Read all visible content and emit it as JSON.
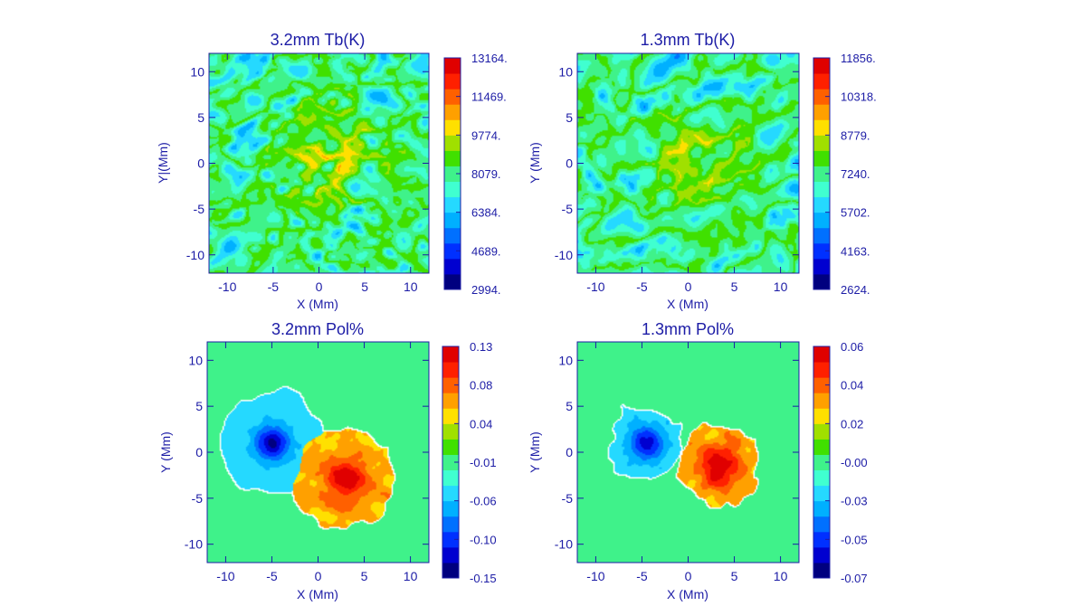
{
  "colors": {
    "axis": "#1c1ca6",
    "text": "#1c1ca6",
    "colormap": [
      "#00007f",
      "#0000d0",
      "#0030ff",
      "#0070ff",
      "#00b0ff",
      "#25d9ff",
      "#40ffd0",
      "#3ff28a",
      "#40e000",
      "#a0e000",
      "#ffe000",
      "#ffa000",
      "#ff6000",
      "#ff2000",
      "#e00000"
    ]
  },
  "chart_data": [
    {
      "type": "heatmap",
      "title": "3.2mm Tb(K)",
      "xlabel": "X (Mm)",
      "ylabel": "Y|(Mm)",
      "xlim": [
        -12,
        12
      ],
      "ylim": [
        -12,
        12
      ],
      "xticks": [
        "-10",
        "-5",
        "0",
        "5",
        "10"
      ],
      "yticks": [
        "-10",
        "-5",
        "0",
        "5",
        "10"
      ],
      "colorbar": {
        "min": 2994,
        "max": 13164,
        "labels": [
          "2994.",
          "4689.",
          "6384.",
          "8079.",
          "9774.",
          "11469.",
          "13164."
        ]
      },
      "field": "brightness",
      "seed": 11,
      "level": 0.5
    },
    {
      "type": "heatmap",
      "title": "1.3mm Tb(K)",
      "xlabel": "X (Mm)",
      "ylabel": "Y (Mm)",
      "xlim": [
        -12,
        12
      ],
      "ylim": [
        -12,
        12
      ],
      "xticks": [
        "-10",
        "-5",
        "0",
        "5",
        "10"
      ],
      "yticks": [
        "-10",
        "-5",
        "0",
        "5",
        "10"
      ],
      "colorbar": {
        "min": 2624,
        "max": 11856,
        "labels": [
          "2624.",
          "4163.",
          "5702.",
          "7240.",
          "8779.",
          "10318.",
          "11856."
        ]
      },
      "field": "brightness",
      "seed": 29,
      "level": 0.4
    },
    {
      "type": "heatmap",
      "title": "3.2mm Pol%",
      "xlabel": "X (Mm)",
      "ylabel": "Y (Mm)",
      "xlim": [
        -12,
        12
      ],
      "ylim": [
        -12,
        12
      ],
      "xticks": [
        "-10",
        "-5",
        "0",
        "5",
        "10"
      ],
      "yticks": [
        "-10",
        "-5",
        "0",
        "5",
        "10"
      ],
      "colorbar": {
        "min": -0.15,
        "max": 0.13,
        "labels": [
          "-0.15",
          "-0.10",
          "-0.06",
          "-0.01",
          "0.04",
          "0.08",
          "0.13"
        ]
      },
      "field": "polarization",
      "seed": 47,
      "neg_center": [
        -5,
        1
      ],
      "pos_center": [
        3,
        -3
      ],
      "neg_radius": 5.5,
      "pos_radius": 5.5,
      "neg_strength": 0.35,
      "pos_strength": 0.95
    },
    {
      "type": "heatmap",
      "title": "1.3mm Pol%",
      "xlabel": "X (Mm)",
      "ylabel": "Y (Mm)",
      "xlim": [
        -12,
        12
      ],
      "ylim": [
        -12,
        12
      ],
      "xticks": [
        "-10",
        "-5",
        "0",
        "5",
        "10"
      ],
      "yticks": [
        "-10",
        "-5",
        "0",
        "5",
        "10"
      ],
      "colorbar": {
        "min": -0.07,
        "max": 0.06,
        "labels": [
          "-0.07",
          "-0.05",
          "-0.03",
          "-0.00",
          "0.02",
          "0.04",
          "0.06"
        ]
      },
      "field": "polarization",
      "seed": 83,
      "neg_center": [
        -4.5,
        1
      ],
      "pos_center": [
        3.5,
        -1.5
      ],
      "neg_radius": 4,
      "pos_radius": 4.5,
      "neg_strength": 0.3,
      "pos_strength": 1.0
    }
  ]
}
